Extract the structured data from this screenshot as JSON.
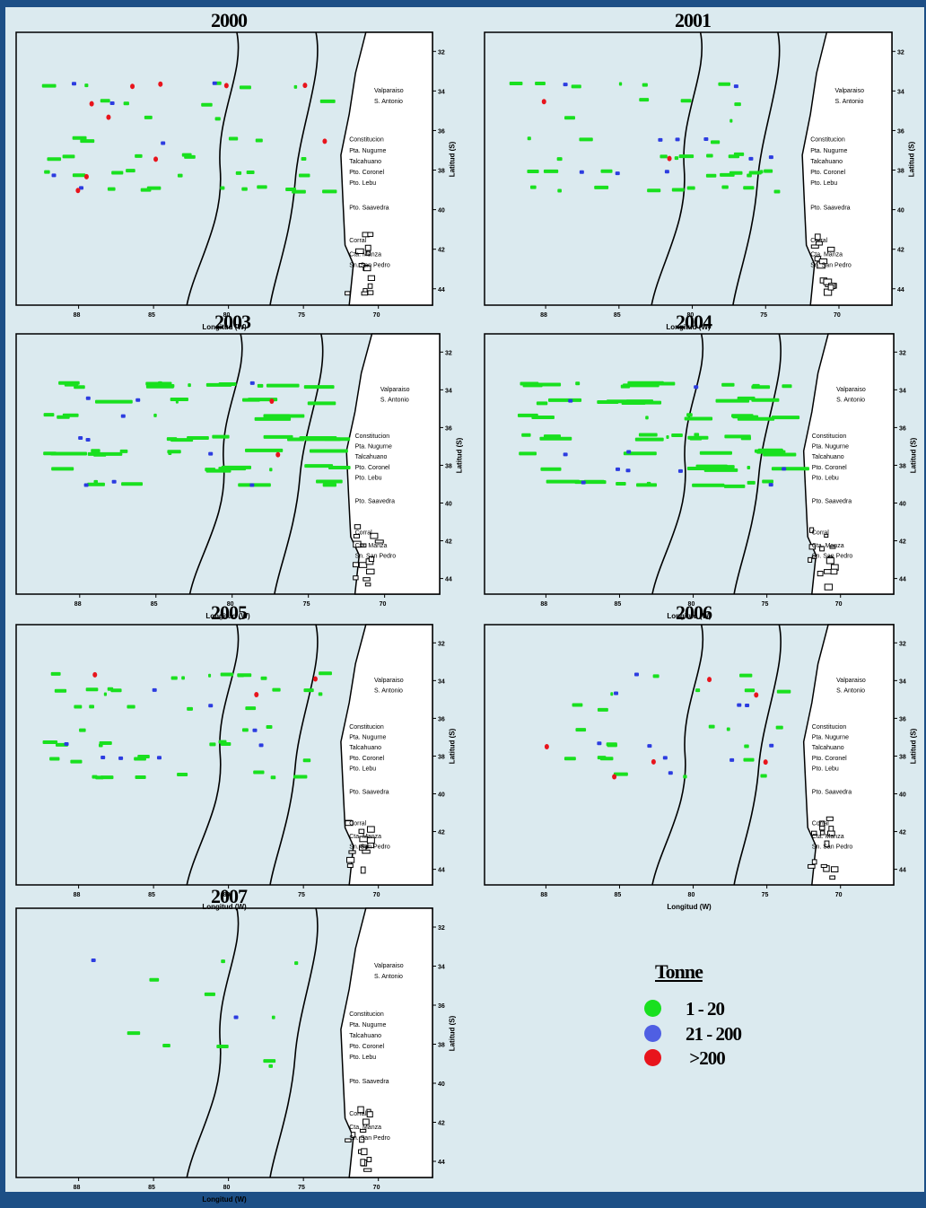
{
  "colors": {
    "green": "#19e01f",
    "blue": "#2c3ce0",
    "red": "#e8141c",
    "frame": "#000000",
    "bg": "#dbeaef"
  },
  "coast_labels": [
    "Valparaiso",
    "S. Antonio",
    "Constitucion",
    "Pta. Nugurne",
    "Talcahuano",
    "Pto. Coronel",
    "Pto. Lebu",
    "Pto. Saavedra",
    "Corral",
    "Cta. Manza",
    "Sn. San Pedro"
  ],
  "panels": [
    {
      "year": "2000",
      "xlabel": "Longitud (W)",
      "ylabel": "Latitud (S)",
      "xticks": [
        "88",
        "85",
        "80",
        "75",
        "70"
      ],
      "yticks": [
        "32",
        "34",
        "36",
        "38",
        "40",
        "42",
        "44"
      ],
      "fishing": {
        "green": 38,
        "blue": 6,
        "red": 10
      }
    },
    {
      "year": "2001",
      "xlabel": "Longitud (W)",
      "ylabel": "Latitud (S)",
      "xticks": [
        "88",
        "85",
        "80",
        "75",
        "70"
      ],
      "yticks": [
        "32",
        "34",
        "36",
        "38",
        "40",
        "42",
        "44"
      ],
      "fishing": {
        "green": 40,
        "blue": 10,
        "red": 2
      }
    },
    {
      "year": "2003",
      "xlabel": "Longitud (W)",
      "ylabel": "Latitud (S)",
      "xticks": [
        "88",
        "85",
        "80",
        "75",
        "70"
      ],
      "yticks": [
        "32",
        "34",
        "36",
        "38",
        "40",
        "42",
        "44"
      ],
      "fishing": {
        "green": 60,
        "blue": 10,
        "red": 2
      }
    },
    {
      "year": "2004",
      "xlabel": "Longitud (W)",
      "ylabel": "Latitud (S)",
      "xticks": [
        "88",
        "85",
        "80",
        "75",
        "70"
      ],
      "yticks": [
        "32",
        "34",
        "36",
        "38",
        "40",
        "42",
        "44"
      ],
      "fishing": {
        "green": 70,
        "blue": 10,
        "red": 0
      }
    },
    {
      "year": "2005",
      "xlabel": "Longitud (W)",
      "ylabel": "Latitud (S)",
      "xticks": [
        "88",
        "85",
        "80",
        "75",
        "70"
      ],
      "yticks": [
        "32",
        "34",
        "36",
        "38",
        "40",
        "42",
        "44"
      ],
      "fishing": {
        "green": 45,
        "blue": 8,
        "red": 3
      }
    },
    {
      "year": "2006",
      "xlabel": "Longitud (W)",
      "ylabel": "Latitud (S)",
      "xticks": [
        "88",
        "85",
        "80",
        "75",
        "70"
      ],
      "yticks": [
        "32",
        "34",
        "36",
        "38",
        "40",
        "42",
        "44"
      ],
      "fishing": {
        "green": 22,
        "blue": 10,
        "red": 6
      }
    },
    {
      "year": "2007",
      "xlabel": "Longitud (W)",
      "ylabel": "Latitud (S)",
      "xticks": [
        "88",
        "85",
        "80",
        "75",
        "70"
      ],
      "yticks": [
        "32",
        "34",
        "36",
        "38",
        "40",
        "42",
        "44"
      ],
      "fishing": {
        "green": 10,
        "blue": 2,
        "red": 0
      }
    }
  ],
  "legend": {
    "title": "Tonne",
    "items": [
      {
        "label": "1 - 20",
        "color": "#19e01f"
      },
      {
        "label": "21 - 200",
        "color": "#2c3ce0"
      },
      {
        "label": " >200",
        "color": "#e8141c"
      }
    ]
  }
}
